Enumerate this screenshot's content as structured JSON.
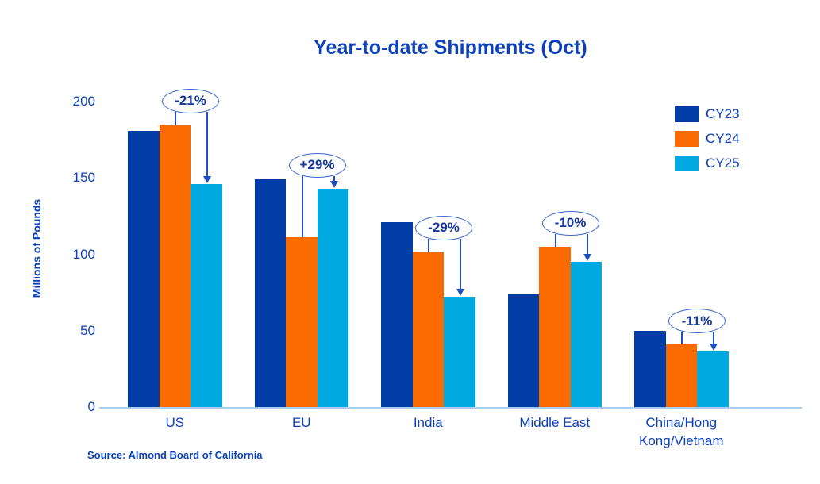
{
  "title": "Year-to-date Shipments (Oct)",
  "source": "Source: Almond Board of California",
  "colors": {
    "text_blue": "#0c41bb",
    "annotation_text": "#15379d",
    "ellipse_stroke": "#3a68cc",
    "arrow": "#1e4fc0",
    "axis_line": "#a9cdf0",
    "cy23": "#003da6",
    "cy24": "#f96a00",
    "cy25": "#00a9e0"
  },
  "chart_data": {
    "type": "bar",
    "title": "Year-to-date Shipments (Oct)",
    "xlabel": "",
    "ylabel": "Millions of Pounds",
    "ylim": [
      0,
      200
    ],
    "yticks": [
      0,
      50,
      100,
      150,
      200
    ],
    "grid": false,
    "legend_position": "top-right",
    "categories": [
      "US",
      "EU",
      "India",
      "Middle East",
      "China/Hong Kong/Vietnam"
    ],
    "category_label_lines": [
      [
        "US"
      ],
      [
        "EU"
      ],
      [
        "India"
      ],
      [
        "Middle East"
      ],
      [
        "China/Hong",
        "Kong/Vietnam"
      ]
    ],
    "series": [
      {
        "name": "CY23",
        "color": "#003da6",
        "values": [
          181,
          149,
          121,
          74,
          50
        ]
      },
      {
        "name": "CY24",
        "color": "#f96a00",
        "values": [
          185,
          111,
          102,
          105,
          41
        ]
      },
      {
        "name": "CY25",
        "color": "#00a9e0",
        "values": [
          146,
          143,
          72,
          95,
          36.5
        ]
      }
    ],
    "annotations": [
      {
        "category_index": 0,
        "label": "-21%",
        "from_series": "CY24",
        "to_series": "CY25"
      },
      {
        "category_index": 1,
        "label": "+29%",
        "from_series": "CY24",
        "to_series": "CY25"
      },
      {
        "category_index": 2,
        "label": "-29%",
        "from_series": "CY24",
        "to_series": "CY25"
      },
      {
        "category_index": 3,
        "label": "-10%",
        "from_series": "CY24",
        "to_series": "CY25"
      },
      {
        "category_index": 4,
        "label": "-11%",
        "from_series": "CY24",
        "to_series": "CY25"
      }
    ]
  }
}
